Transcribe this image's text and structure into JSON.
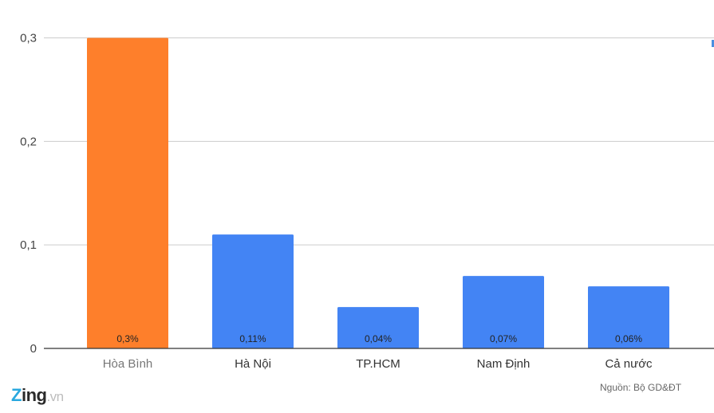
{
  "chart_data": {
    "type": "bar",
    "categories": [
      "Hòa Bình",
      "Hà Nội",
      "TP.HCM",
      "Nam Định",
      "Cả nước"
    ],
    "values": [
      0.3,
      0.11,
      0.04,
      0.07,
      0.06
    ],
    "data_labels": [
      "0,3%",
      "0,11%",
      "0,04%",
      "0,07%",
      "0,06%"
    ],
    "yticks": [
      0,
      0.1,
      0.2,
      0.3
    ],
    "ytick_labels": [
      "0",
      "0,1",
      "0,2",
      "0,3"
    ],
    "ylim": [
      0,
      0.3
    ],
    "grid": true,
    "legend": "none",
    "highlight_index": 0,
    "colors": {
      "highlight": "#fe7f2b",
      "default": "#4384f4",
      "grid": "#cccccc",
      "axis": "#333333"
    }
  },
  "footer": {
    "logo_main_letter": "Z",
    "logo_rest": "ing",
    "logo_suffix": ".vn",
    "source": "Nguồn: Bộ GD&ĐT"
  }
}
